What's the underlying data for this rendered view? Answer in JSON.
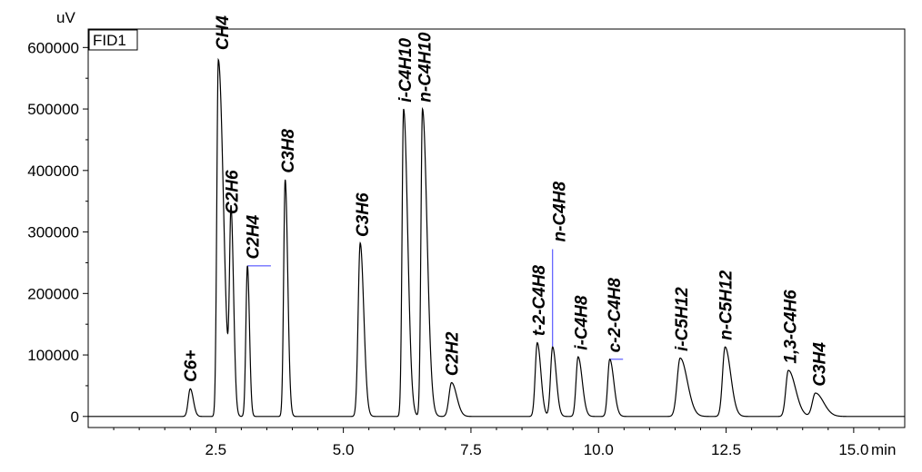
{
  "chart_data": {
    "type": "line",
    "title": "",
    "detector": "FID1",
    "xlabel": "min",
    "ylabel": "uV",
    "xlim": [
      0,
      16
    ],
    "ylim": [
      -18000,
      630000
    ],
    "x_ticks": [
      2.5,
      5.0,
      7.5,
      10.0,
      12.5,
      15.0
    ],
    "x_tick_labels": [
      "2.5",
      "5.0",
      "7.5",
      "10.0",
      "12.5",
      "15.0"
    ],
    "y_ticks": [
      0,
      100000,
      200000,
      300000,
      400000,
      500000,
      600000
    ],
    "y_tick_labels": [
      "0",
      "100000",
      "200000",
      "300000",
      "400000",
      "500000",
      "600000"
    ],
    "grid": false,
    "peaks": [
      {
        "label": "C6+",
        "rt": 2.0,
        "height": 45000
      },
      {
        "label": "CH4",
        "rt": 2.55,
        "height": 580000
      },
      {
        "label": "C2H6",
        "rt": 2.8,
        "height": 318000
      },
      {
        "label": "C2H4",
        "rt": 3.12,
        "height": 245000
      },
      {
        "label": "C3H8",
        "rt": 3.86,
        "height": 385000
      },
      {
        "label": "C3H6",
        "rt": 5.33,
        "height": 282000
      },
      {
        "label": "i-C4H10",
        "rt": 6.18,
        "height": 500000
      },
      {
        "label": "n-C4H10",
        "rt": 6.55,
        "height": 500000
      },
      {
        "label": "C2H2",
        "rt": 7.12,
        "height": 55000
      },
      {
        "label": "t-2-C4H8",
        "rt": 8.8,
        "height": 120000
      },
      {
        "label": "n-C4H8",
        "rt": 9.1,
        "height": 113000
      },
      {
        "label": "i-C4H8",
        "rt": 9.6,
        "height": 97000
      },
      {
        "label": "c-2-C4H8",
        "rt": 10.22,
        "height": 93000
      },
      {
        "label": "i-C5H12",
        "rt": 11.6,
        "height": 95000
      },
      {
        "label": "n-C5H12",
        "rt": 12.48,
        "height": 113000
      },
      {
        "label": "1,3-C4H6",
        "rt": 13.72,
        "height": 75000
      },
      {
        "label": "C3H4",
        "rt": 14.25,
        "height": 38000
      }
    ]
  }
}
